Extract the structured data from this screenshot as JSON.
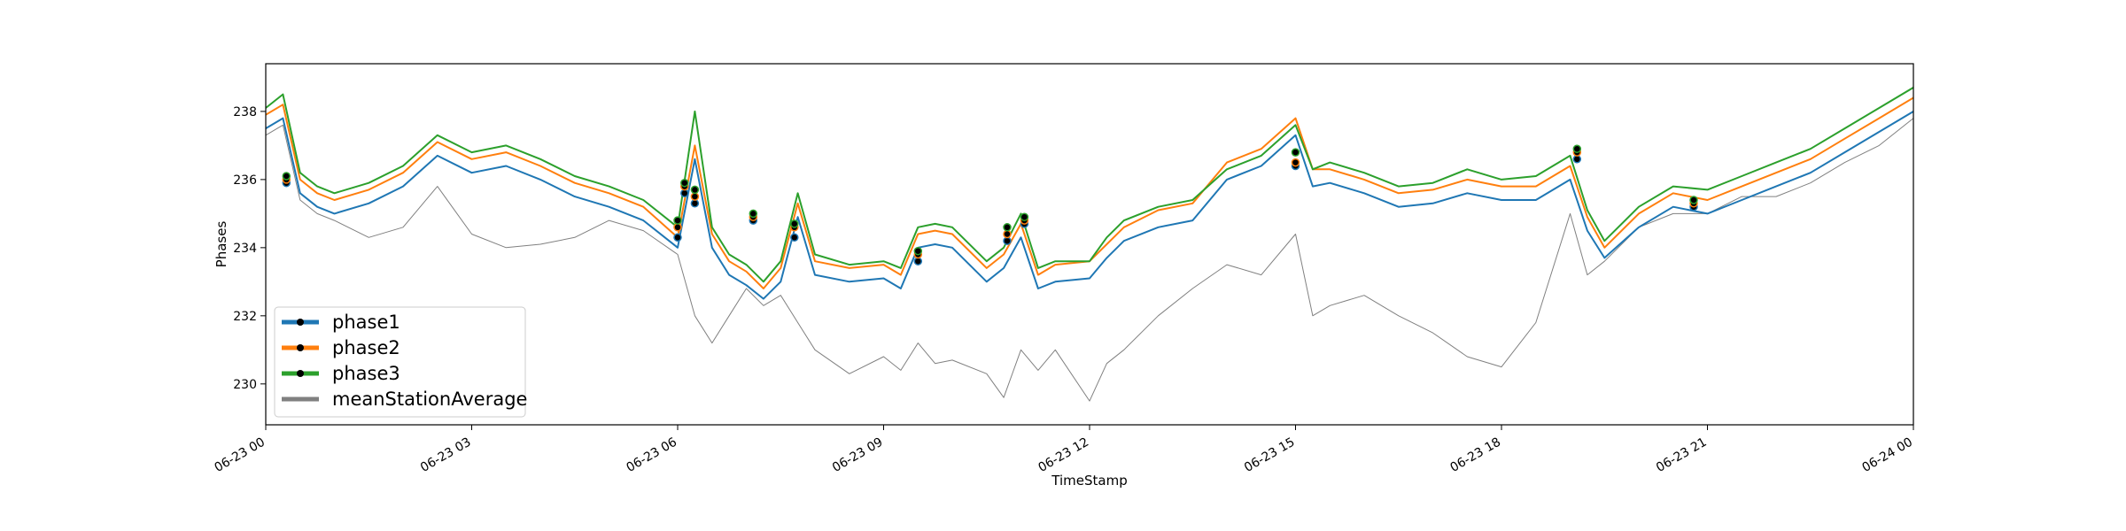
{
  "chart_data": {
    "type": "line",
    "xlabel": "TimeStamp",
    "ylabel": "Phases",
    "x_ticks": [
      "06-23 00",
      "06-23 03",
      "06-23 06",
      "06-23 09",
      "06-23 12",
      "06-23 15",
      "06-23 18",
      "06-23 21",
      "06-24 00"
    ],
    "y_ticks": [
      230,
      232,
      234,
      236,
      238
    ],
    "xlim_hours": [
      0,
      24
    ],
    "ylim": [
      228.8,
      239.4
    ],
    "grid": false,
    "legend_position": "lower-left",
    "legend": [
      "phase1",
      "phase2",
      "phase3",
      "meanStationAverage"
    ],
    "series": [
      {
        "name": "phase1",
        "color": "#1f77b4",
        "x_hours": [
          0,
          0.25,
          0.5,
          0.75,
          1,
          1.5,
          2,
          2.5,
          3,
          3.5,
          4,
          4.5,
          5,
          5.5,
          6,
          6.25,
          6.5,
          6.75,
          7,
          7.25,
          7.5,
          7.75,
          8,
          8.5,
          9,
          9.25,
          9.5,
          9.75,
          10,
          10.5,
          10.75,
          11,
          11.25,
          11.5,
          12,
          12.25,
          12.5,
          13,
          13.5,
          14,
          14.5,
          15,
          15.25,
          15.5,
          16,
          16.5,
          17,
          17.5,
          18,
          18.5,
          19,
          19.25,
          19.5,
          20,
          20.5,
          21,
          21.5,
          22,
          22.5,
          23,
          23.5,
          24
        ],
        "values": [
          237.5,
          237.8,
          235.6,
          235.2,
          235.0,
          235.3,
          235.8,
          236.7,
          236.2,
          236.4,
          236.0,
          235.5,
          235.2,
          234.8,
          234.0,
          236.6,
          234.0,
          233.2,
          232.9,
          232.5,
          233.0,
          234.9,
          233.2,
          233.0,
          233.1,
          232.8,
          234.0,
          234.1,
          234.0,
          233.0,
          233.4,
          234.3,
          232.8,
          233.0,
          233.1,
          233.7,
          234.2,
          234.6,
          234.8,
          236.0,
          236.4,
          237.3,
          235.8,
          235.9,
          235.6,
          235.2,
          235.3,
          235.6,
          235.4,
          235.4,
          236.0,
          234.5,
          233.7,
          234.6,
          235.2,
          235.0,
          235.4,
          235.8,
          236.2,
          236.8,
          237.4,
          238.0
        ]
      },
      {
        "name": "phase2",
        "color": "#ff7f0e",
        "x_hours": [
          0,
          0.25,
          0.5,
          0.75,
          1,
          1.5,
          2,
          2.5,
          3,
          3.5,
          4,
          4.5,
          5,
          5.5,
          6,
          6.25,
          6.5,
          6.75,
          7,
          7.25,
          7.5,
          7.75,
          8,
          8.5,
          9,
          9.25,
          9.5,
          9.75,
          10,
          10.5,
          10.75,
          11,
          11.25,
          11.5,
          12,
          12.25,
          12.5,
          13,
          13.5,
          14,
          14.5,
          15,
          15.25,
          15.5,
          16,
          16.5,
          17,
          17.5,
          18,
          18.5,
          19,
          19.25,
          19.5,
          20,
          20.5,
          21,
          21.5,
          22,
          22.5,
          23,
          23.5,
          24
        ],
        "values": [
          237.9,
          238.2,
          236.0,
          235.6,
          235.4,
          235.7,
          236.2,
          237.1,
          236.6,
          236.8,
          236.4,
          235.9,
          235.6,
          235.2,
          234.3,
          237.0,
          234.4,
          233.6,
          233.3,
          232.8,
          233.4,
          235.3,
          233.6,
          233.4,
          233.5,
          233.2,
          234.4,
          234.5,
          234.4,
          233.4,
          233.8,
          234.7,
          233.2,
          233.5,
          233.6,
          234.1,
          234.6,
          235.1,
          235.3,
          236.5,
          236.9,
          237.8,
          236.3,
          236.3,
          236.0,
          235.6,
          235.7,
          236.0,
          235.8,
          235.8,
          236.4,
          234.9,
          234.0,
          235.0,
          235.6,
          235.4,
          235.8,
          236.2,
          236.6,
          237.2,
          237.8,
          238.4
        ]
      },
      {
        "name": "phase3",
        "color": "#2ca02c",
        "x_hours": [
          0,
          0.25,
          0.5,
          0.75,
          1,
          1.5,
          2,
          2.5,
          3,
          3.5,
          4,
          4.5,
          5,
          5.5,
          6,
          6.25,
          6.5,
          6.75,
          7,
          7.25,
          7.5,
          7.75,
          8,
          8.5,
          9,
          9.25,
          9.5,
          9.75,
          10,
          10.5,
          10.75,
          11,
          11.25,
          11.5,
          12,
          12.25,
          12.5,
          13,
          13.5,
          14,
          14.5,
          15,
          15.25,
          15.5,
          16,
          16.5,
          17,
          17.5,
          18,
          18.5,
          19,
          19.25,
          19.5,
          20,
          20.5,
          21,
          21.5,
          22,
          22.5,
          23,
          23.5,
          24
        ],
        "values": [
          238.1,
          238.5,
          236.2,
          235.8,
          235.6,
          235.9,
          236.4,
          237.3,
          236.8,
          237.0,
          236.6,
          236.1,
          235.8,
          235.4,
          234.6,
          238.0,
          234.6,
          233.8,
          233.5,
          233.0,
          233.6,
          235.6,
          233.8,
          233.5,
          233.6,
          233.4,
          234.6,
          234.7,
          234.6,
          233.6,
          234.0,
          235.0,
          233.4,
          233.6,
          233.6,
          234.3,
          234.8,
          235.2,
          235.4,
          236.3,
          236.7,
          237.6,
          236.3,
          236.5,
          236.2,
          235.8,
          235.9,
          236.3,
          236.0,
          236.1,
          236.7,
          235.1,
          234.2,
          235.2,
          235.8,
          235.7,
          236.1,
          236.5,
          236.9,
          237.5,
          238.1,
          238.7
        ]
      },
      {
        "name": "meanStationAverage",
        "color": "#808080",
        "x_hours": [
          0,
          0.25,
          0.5,
          0.75,
          1,
          1.5,
          2,
          2.5,
          3,
          3.5,
          4,
          4.5,
          5,
          5.5,
          6,
          6.25,
          6.5,
          6.75,
          7,
          7.25,
          7.5,
          7.75,
          8,
          8.5,
          9,
          9.25,
          9.5,
          9.75,
          10,
          10.5,
          10.75,
          11,
          11.25,
          11.5,
          12,
          12.25,
          12.5,
          13,
          13.5,
          14,
          14.5,
          15,
          15.25,
          15.5,
          16,
          16.5,
          17,
          17.5,
          18,
          18.5,
          19,
          19.25,
          19.5,
          20,
          20.5,
          21,
          21.5,
          22,
          22.5,
          23,
          23.5,
          24
        ],
        "values": [
          237.3,
          237.6,
          235.4,
          235.0,
          234.8,
          234.3,
          234.6,
          235.8,
          234.4,
          234.0,
          234.1,
          234.3,
          234.8,
          234.5,
          233.8,
          232.0,
          231.2,
          232.0,
          232.8,
          232.3,
          232.6,
          231.8,
          231.0,
          230.3,
          230.8,
          230.4,
          231.2,
          230.6,
          230.7,
          230.3,
          229.6,
          231.0,
          230.4,
          231.0,
          229.5,
          230.6,
          231.0,
          232.0,
          232.8,
          233.5,
          233.2,
          234.4,
          232.0,
          232.3,
          232.6,
          232.0,
          231.5,
          230.8,
          230.5,
          231.8,
          235.0,
          233.2,
          233.6,
          234.6,
          235.0,
          235.0,
          235.5,
          235.5,
          235.9,
          236.5,
          237.0,
          237.8
        ]
      }
    ],
    "markers": {
      "color": "#000000",
      "x_hours": [
        0.3,
        6.0,
        6.1,
        6.25,
        7.1,
        7.7,
        9.5,
        10.8,
        11.05,
        15.0,
        19.1,
        20.8
      ],
      "phase_values": [
        [
          235.9,
          236.0,
          236.1
        ],
        [
          234.3,
          234.6,
          234.8
        ],
        [
          235.6,
          235.8,
          235.9
        ],
        [
          235.3,
          235.5,
          235.7
        ],
        [
          234.8,
          234.9,
          235.0
        ],
        [
          234.3,
          234.6,
          234.7
        ],
        [
          233.6,
          233.8,
          233.9
        ],
        [
          234.2,
          234.4,
          234.6
        ],
        [
          234.7,
          234.8,
          234.9
        ],
        [
          236.4,
          236.5,
          236.8
        ],
        [
          236.6,
          236.8,
          236.9
        ],
        [
          235.2,
          235.3,
          235.4
        ]
      ]
    }
  }
}
